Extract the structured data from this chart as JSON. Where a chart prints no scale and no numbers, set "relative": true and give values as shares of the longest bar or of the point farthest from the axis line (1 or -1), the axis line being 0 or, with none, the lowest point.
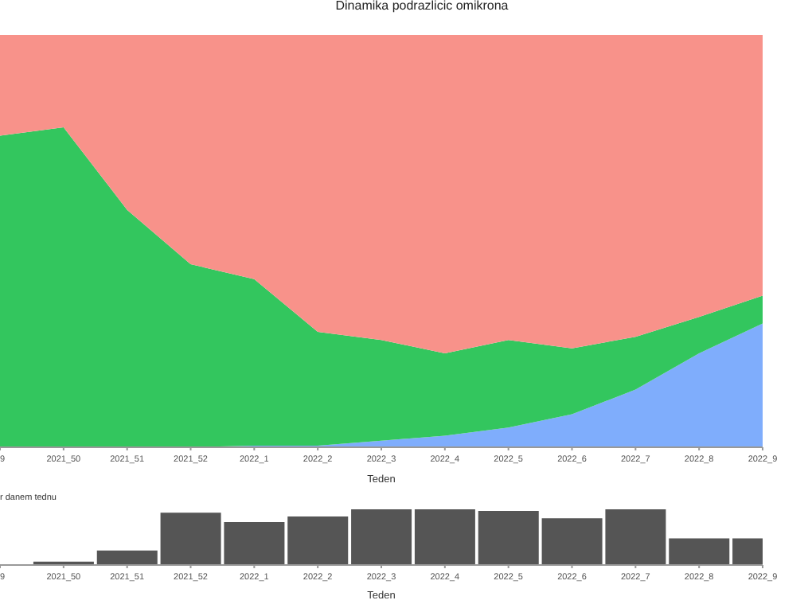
{
  "chart_data": [
    {
      "type": "area",
      "title": "Dinamika podrazlicic omikrona",
      "xlabel": "Teden",
      "stacked": true,
      "relative": true,
      "legend": false,
      "grid": false,
      "categories": [
        "9",
        "2021_50",
        "2021_51",
        "2021_52",
        "2022_1",
        "2022_2",
        "2022_3",
        "2022_4",
        "2022_5",
        "2022_6",
        "2022_7",
        "2022_8",
        "2022_9"
      ],
      "series": [
        {
          "color": "#7fadfc",
          "values": [
            0,
            0,
            0,
            0,
            0.004,
            0.004,
            0.016,
            0.028,
            0.048,
            0.08,
            0.14,
            0.228,
            0.3
          ]
        },
        {
          "color": "#33c65e",
          "values": [
            0.756,
            0.776,
            0.576,
            0.444,
            0.404,
            0.276,
            0.244,
            0.2,
            0.212,
            0.16,
            0.128,
            0.088,
            0.068
          ]
        },
        {
          "color": "#f8928a",
          "values": [
            0.244,
            0.224,
            0.424,
            0.556,
            0.592,
            0.72,
            0.74,
            0.772,
            0.74,
            0.76,
            0.732,
            0.684,
            0.632
          ]
        }
      ]
    },
    {
      "type": "bar",
      "title": "r danem tednu",
      "xlabel": "Teden",
      "relative": true,
      "legend": false,
      "grid": false,
      "categories": [
        "9",
        "2021_50",
        "2021_51",
        "2021_52",
        "2022_1",
        "2022_2",
        "2022_3",
        "2022_4",
        "2022_5",
        "2022_6",
        "2022_7",
        "2022_8",
        "2022_9"
      ],
      "series": [
        {
          "color": "#555555",
          "values": [
            null,
            0.06,
            0.26,
            0.94,
            0.77,
            0.87,
            1,
            1,
            0.97,
            0.84,
            1,
            0.48,
            0.48
          ]
        }
      ]
    }
  ]
}
